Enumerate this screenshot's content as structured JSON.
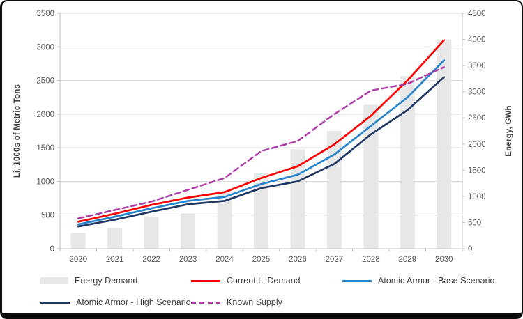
{
  "chart_data": {
    "type": "combo-bar-line",
    "categories": [
      "2020",
      "2021",
      "2022",
      "2023",
      "2024",
      "2025",
      "2026",
      "2027",
      "2028",
      "2029",
      "2030"
    ],
    "left_axis": {
      "title": "Li, 1000s of Metric Tons",
      "min": 0,
      "max": 3500,
      "step": 500,
      "ticks": [
        "0",
        "500",
        "1000",
        "1500",
        "2000",
        "2500",
        "3000",
        "3500"
      ]
    },
    "right_axis": {
      "title": "Energy, GWh",
      "min": 0,
      "max": 4500,
      "step": 500,
      "ticks": [
        "0",
        "500",
        "1000",
        "1500",
        "2000",
        "2500",
        "3000",
        "3500",
        "4000",
        "4500"
      ]
    },
    "grid": true,
    "series": [
      {
        "name": "Energy Demand",
        "type": "bar",
        "axis": "right",
        "color": "#E7E7E7",
        "values": [
          300,
          400,
          600,
          675,
          1100,
          1450,
          1900,
          2250,
          2750,
          3300,
          4000
        ]
      },
      {
        "name": "Current Li Demand",
        "type": "line",
        "axis": "left",
        "color": "#FF0000",
        "values": [
          400,
          520,
          650,
          760,
          840,
          1050,
          1225,
          1550,
          1975,
          2500,
          3100
        ]
      },
      {
        "name": "Atomic Armor - Base Scenario",
        "type": "line",
        "axis": "left",
        "color": "#2783CC",
        "values": [
          360,
          475,
          600,
          710,
          770,
          960,
          1100,
          1400,
          1825,
          2250,
          2800
        ]
      },
      {
        "name": "Atomic Armor -  High Scenario",
        "type": "line",
        "axis": "left",
        "color": "#1F3864",
        "values": [
          330,
          430,
          550,
          660,
          710,
          900,
          1000,
          1260,
          1700,
          2060,
          2550
        ]
      },
      {
        "name": "Known Supply",
        "type": "line",
        "dashed": true,
        "axis": "left",
        "color": "#AF3BAB",
        "values": [
          450,
          575,
          700,
          875,
          1050,
          1450,
          1600,
          2000,
          2350,
          2450,
          2700
        ]
      }
    ]
  },
  "legend": {
    "items": [
      {
        "label": "Energy Demand",
        "kind": "bar",
        "color": "#E7E7E7"
      },
      {
        "label": "Current Li Demand",
        "kind": "line",
        "color": "#FF0000"
      },
      {
        "label": "Atomic Armor - Base Scenario",
        "kind": "line",
        "color": "#2783CC"
      },
      {
        "label": "Atomic Armor -  High Scenario",
        "kind": "line",
        "color": "#1F3864"
      },
      {
        "label": "Known Supply",
        "kind": "dash",
        "color": "#AF3BAB"
      }
    ]
  },
  "colors": {
    "gridline": "#D9D9D9",
    "axis_line": "#BFBFBF",
    "tick_label": "#595959",
    "axis_title": "#404040"
  }
}
